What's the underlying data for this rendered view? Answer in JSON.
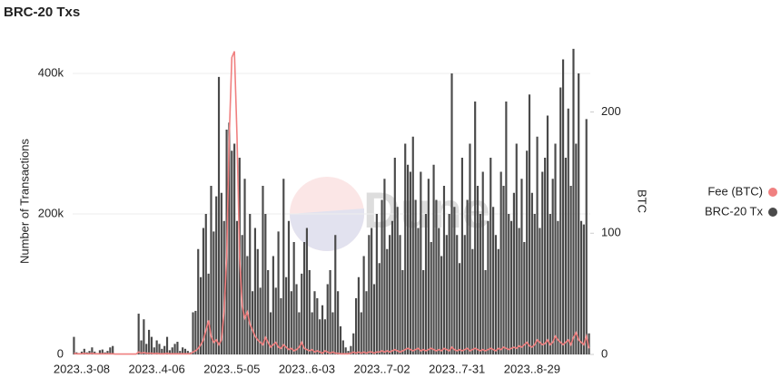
{
  "chart_data": {
    "type": "bar",
    "title": "BRC-20 Txs",
    "y_label": "Number of Transactions",
    "y2_label": "BTC",
    "watermark": "Dune",
    "grid": true,
    "legend": "right",
    "categories": [
      null,
      null,
      null,
      "2023..3-08",
      null,
      null,
      null,
      null,
      null,
      null,
      null,
      null,
      null,
      null,
      null,
      null,
      null,
      null,
      null,
      null,
      null,
      null,
      null,
      null,
      null,
      null,
      null,
      null,
      null,
      null,
      null,
      null,
      "2023..4-06",
      null,
      null,
      null,
      null,
      null,
      null,
      null,
      null,
      null,
      null,
      null,
      null,
      null,
      null,
      null,
      null,
      null,
      null,
      null,
      null,
      null,
      null,
      null,
      null,
      null,
      null,
      null,
      null,
      "2023..5-05",
      null,
      null,
      null,
      null,
      null,
      null,
      null,
      null,
      null,
      null,
      null,
      null,
      null,
      null,
      null,
      null,
      null,
      null,
      null,
      null,
      null,
      null,
      null,
      null,
      null,
      null,
      null,
      null,
      "2023..6-03",
      null,
      null,
      null,
      null,
      null,
      null,
      null,
      null,
      null,
      null,
      null,
      null,
      null,
      null,
      null,
      null,
      null,
      null,
      null,
      null,
      null,
      null,
      null,
      null,
      null,
      null,
      null,
      null,
      "2023..7-02",
      null,
      null,
      null,
      null,
      null,
      null,
      null,
      null,
      null,
      null,
      null,
      null,
      null,
      null,
      null,
      null,
      null,
      null,
      null,
      null,
      null,
      null,
      null,
      null,
      null,
      null,
      null,
      null,
      "2023..7-31",
      null,
      null,
      null,
      null,
      null,
      null,
      null,
      null,
      null,
      null,
      null,
      null,
      null,
      null,
      null,
      null,
      null,
      null,
      null,
      null,
      null,
      null,
      null,
      null,
      null,
      null,
      null,
      null,
      "2023..8-29",
      null,
      null,
      null,
      null,
      null,
      null,
      null,
      null,
      null,
      null,
      null,
      null,
      null,
      null,
      null,
      null,
      null,
      null,
      null,
      null,
      null,
      null
    ],
    "series": [
      {
        "name": "Fee (BTC)",
        "type": "line",
        "axis": "y2",
        "color": "#f08080",
        "values": [
          1,
          0.5,
          0.5,
          0.5,
          1,
          0.5,
          0.5,
          1,
          0.5,
          0.5,
          0.5,
          0.5,
          0.5,
          0.5,
          0.5,
          0.5,
          0.3,
          0.3,
          0.3,
          0.3,
          0.3,
          0.3,
          0.3,
          0.3,
          0.3,
          2,
          1,
          1.5,
          1,
          1,
          1,
          0.5,
          1,
          0.5,
          0.5,
          0.5,
          1,
          0.5,
          0.5,
          0.5,
          0.5,
          0.5,
          0.5,
          0.5,
          0.5,
          0.5,
          2,
          3,
          5,
          8,
          12,
          20,
          28,
          15,
          10,
          12,
          8,
          12,
          35,
          80,
          180,
          245,
          250,
          180,
          80,
          40,
          30,
          35,
          25,
          20,
          15,
          12,
          10,
          8,
          14,
          10,
          6,
          8,
          10,
          6,
          5,
          8,
          6,
          4,
          5,
          3,
          4,
          6,
          10,
          5,
          4,
          3,
          4,
          2,
          3,
          2,
          1,
          3,
          2,
          1,
          2,
          1,
          1,
          0.5,
          0.5,
          0.5,
          0.5,
          1,
          2,
          1,
          2,
          1,
          2,
          1,
          2,
          2,
          1,
          2,
          2,
          3,
          2,
          3,
          2,
          3,
          4,
          3,
          2,
          3,
          4,
          5,
          4,
          3,
          4,
          5,
          3,
          4,
          3,
          4,
          5,
          4,
          3,
          4,
          3,
          5,
          4,
          3,
          6,
          4,
          3,
          4,
          3,
          4,
          5,
          3,
          4,
          5,
          4,
          3,
          4,
          3,
          4,
          5,
          4,
          3,
          5,
          4,
          6,
          5,
          4,
          5,
          6,
          5,
          7,
          6,
          8,
          10,
          7,
          6,
          8,
          12,
          10,
          8,
          9,
          12,
          8,
          10,
          15,
          12,
          10,
          8,
          10,
          12,
          8,
          14,
          18,
          12,
          10,
          8,
          15,
          5
        ]
      },
      {
        "name": "BRC-20 Tx",
        "type": "bar",
        "color": "#4a4a4a",
        "values": [
          25000,
          3000,
          2000,
          4000,
          8000,
          3000,
          5000,
          10000,
          4000,
          2000,
          6000,
          7000,
          3000,
          5000,
          10000,
          12000,
          0,
          0,
          0,
          0,
          0,
          0,
          0,
          0,
          0,
          58000,
          20000,
          50000,
          15000,
          35000,
          25000,
          10000,
          20000,
          15000,
          8000,
          12000,
          25000,
          6000,
          10000,
          15000,
          18000,
          5000,
          10000,
          8000,
          5000,
          3000,
          60000,
          62000,
          150000,
          110000,
          180000,
          200000,
          115000,
          240000,
          175000,
          225000,
          395000,
          230000,
          190000,
          320000,
          330000,
          290000,
          300000,
          190000,
          280000,
          170000,
          250000,
          140000,
          200000,
          90000,
          180000,
          150000,
          95000,
          240000,
          200000,
          120000,
          60000,
          140000,
          95000,
          175000,
          80000,
          250000,
          110000,
          190000,
          90000,
          160000,
          100000,
          60000,
          115000,
          160000,
          180000,
          120000,
          60000,
          90000,
          80000,
          50000,
          70000,
          50000,
          100000,
          120000,
          60000,
          170000,
          90000,
          40000,
          20000,
          10000,
          5000,
          12000,
          30000,
          80000,
          110000,
          60000,
          140000,
          90000,
          170000,
          180000,
          100000,
          200000,
          130000,
          220000,
          250000,
          150000,
          170000,
          190000,
          280000,
          210000,
          170000,
          120000,
          300000,
          270000,
          260000,
          310000,
          220000,
          180000,
          260000,
          120000,
          200000,
          250000,
          160000,
          270000,
          220000,
          180000,
          140000,
          240000,
          170000,
          200000,
          400000,
          210000,
          170000,
          130000,
          280000,
          170000,
          220000,
          300000,
          150000,
          360000,
          240000,
          200000,
          260000,
          120000,
          190000,
          280000,
          210000,
          170000,
          150000,
          260000,
          240000,
          360000,
          200000,
          190000,
          230000,
          300000,
          180000,
          250000,
          160000,
          290000,
          370000,
          230000,
          200000,
          310000,
          180000,
          260000,
          280000,
          340000,
          200000,
          250000,
          300000,
          190000,
          380000,
          420000,
          280000,
          350000,
          240000,
          435000,
          300000,
          400000,
          190000,
          185000,
          335000,
          30000
        ]
      }
    ],
    "ylim": [
      0,
      440000
    ],
    "yticks": [
      0,
      {
        "value": 200000,
        "label": "200k"
      },
      {
        "value": 400000,
        "label": "400k"
      }
    ],
    "y2lim": [
      0,
      255
    ],
    "y2ticks": [
      0,
      100,
      200
    ]
  }
}
